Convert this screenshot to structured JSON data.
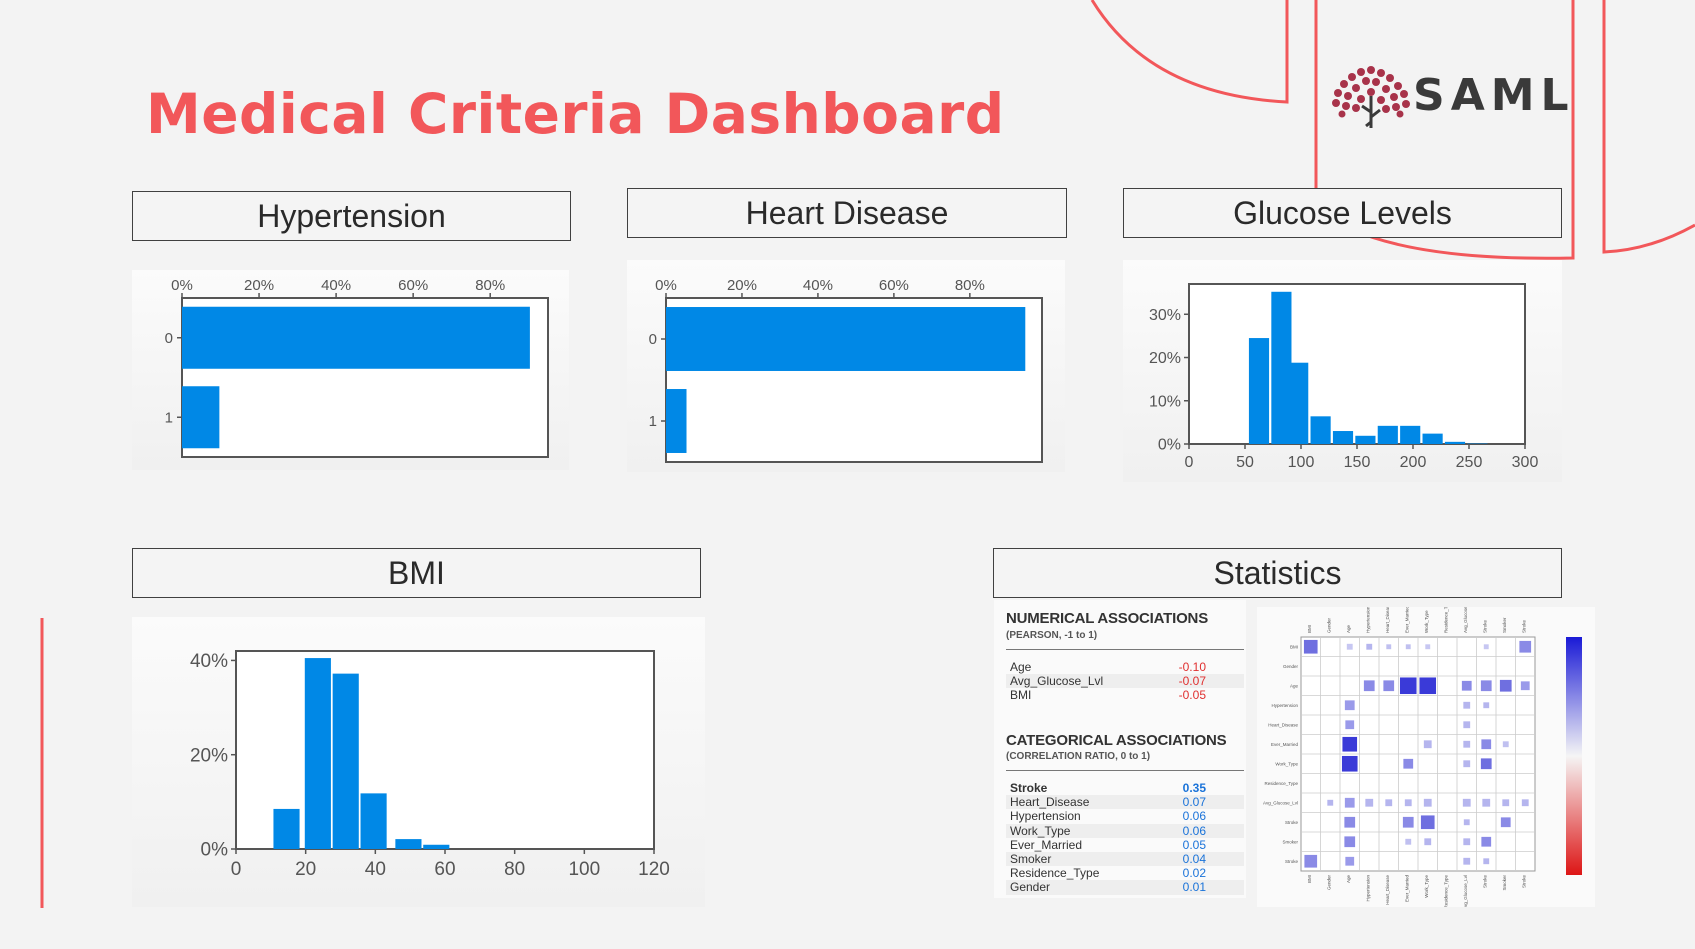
{
  "page": {
    "title": "Medical Criteria Dashboard",
    "logo_text": "SAML",
    "accent_color": "#f2575a",
    "bar_color": "#0088e6"
  },
  "panels": {
    "hypertension": "Hypertension",
    "heart_disease": "Heart Disease",
    "glucose": "Glucose Levels",
    "bmi": "BMI",
    "statistics": "Statistics"
  },
  "chart_data": [
    {
      "type": "bar",
      "orientation": "horizontal",
      "panel": "Hypertension",
      "categories": [
        "0",
        "1"
      ],
      "values": [
        90.3,
        9.7
      ],
      "xticks": [
        "0%",
        "20%",
        "40%",
        "60%",
        "80%"
      ],
      "xlim": [
        0,
        95
      ]
    },
    {
      "type": "bar",
      "orientation": "horizontal",
      "panel": "Heart Disease",
      "categories": [
        "0",
        "1"
      ],
      "values": [
        94.6,
        5.4
      ],
      "xticks": [
        "0%",
        "20%",
        "40%",
        "60%",
        "80%"
      ],
      "xlim": [
        0,
        99
      ]
    },
    {
      "type": "bar",
      "panel": "Glucose Levels",
      "x": [
        62.5,
        82.5,
        97.5,
        117.5,
        137.5,
        157.5,
        177.5,
        197.5,
        217.5,
        237.5,
        257.5
      ],
      "values": [
        24.5,
        35.2,
        18.8,
        6.4,
        3.0,
        1.9,
        4.2,
        4.2,
        2.4,
        0.5,
        0.1
      ],
      "xticks": [
        "0",
        "50",
        "100",
        "150",
        "200",
        "250",
        "300"
      ],
      "yticks": [
        "0%",
        "10%",
        "20%",
        "30%"
      ],
      "xlim": [
        0,
        300
      ],
      "ylim": [
        0,
        37
      ]
    },
    {
      "type": "bar",
      "panel": "BMI",
      "x": [
        14.5,
        23.5,
        31.5,
        39.5,
        49.5,
        57.5
      ],
      "values": [
        8.5,
        40.5,
        37.2,
        11.8,
        2.1,
        0.9
      ],
      "xticks": [
        "0",
        "20",
        "40",
        "60",
        "80",
        "100",
        "120"
      ],
      "yticks": [
        "0%",
        "20%",
        "40%"
      ],
      "xlim": [
        0,
        120
      ],
      "ylim": [
        0,
        42
      ]
    },
    {
      "type": "heatmap",
      "panel": "Statistics",
      "labels": [
        "BMI",
        "Gender",
        "Age",
        "Hypertension",
        "Heart_Disease",
        "Ever_Married",
        "Work_Type",
        "Residence_Type",
        "Avg_Glucose_Lvl",
        "Stroke",
        "Smoker",
        "Stroke"
      ],
      "colorbar": [
        "red",
        "white",
        "blue"
      ]
    }
  ],
  "stats": {
    "numerical_title": "NUMERICAL ASSOCIATIONS",
    "numerical_sub": "(PEARSON, -1 to 1)",
    "numerical": [
      {
        "label": "Age",
        "value": "-0.10"
      },
      {
        "label": "Avg_Glucose_Lvl",
        "value": "-0.07"
      },
      {
        "label": "BMI",
        "value": "-0.05"
      }
    ],
    "categorical_title": "CATEGORICAL ASSOCIATIONS",
    "categorical_sub": "(CORRELATION RATIO, 0 to 1)",
    "categorical": [
      {
        "label": "Stroke",
        "value": "0.35"
      },
      {
        "label": "Heart_Disease",
        "value": "0.07"
      },
      {
        "label": "Hypertension",
        "value": "0.06"
      },
      {
        "label": "Work_Type",
        "value": "0.06"
      },
      {
        "label": "Ever_Married",
        "value": "0.05"
      },
      {
        "label": "Smoker",
        "value": "0.04"
      },
      {
        "label": "Residence_Type",
        "value": "0.02"
      },
      {
        "label": "Gender",
        "value": "0.01"
      }
    ]
  }
}
